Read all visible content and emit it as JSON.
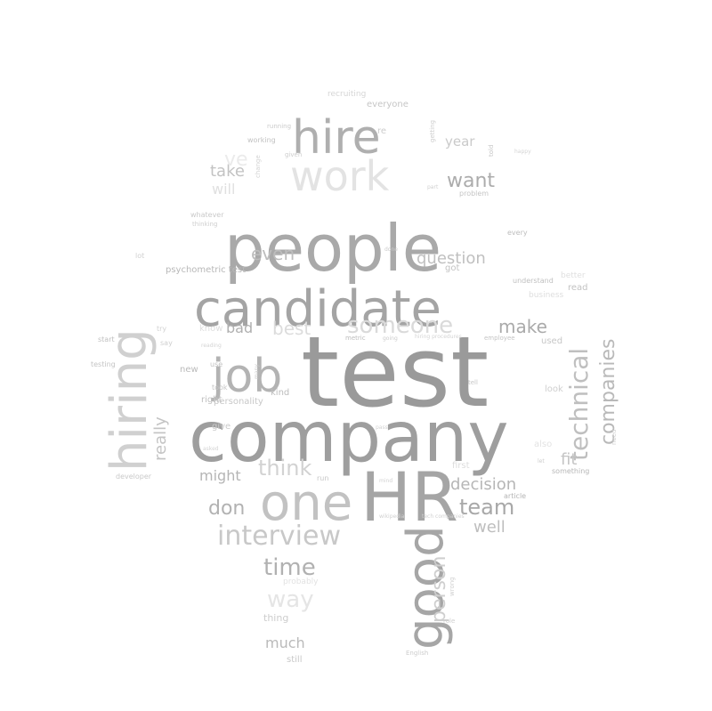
{
  "words": [
    {
      "text": "test",
      "color": "#9a9a9a"
    },
    {
      "text": "company",
      "color": "#9e9e9e"
    },
    {
      "text": "people",
      "color": "#a9a9a9"
    },
    {
      "text": "candidate",
      "color": "#a4a4a4"
    },
    {
      "text": "HR",
      "color": "#a5a5a5"
    },
    {
      "text": "hiring",
      "color": "#d0d0d0"
    },
    {
      "text": "one",
      "color": "#c2c2c2"
    },
    {
      "text": "job",
      "color": "#b3b3b3"
    },
    {
      "text": "work",
      "color": "#e3e3e3"
    },
    {
      "text": "hire",
      "color": "#afafaf"
    },
    {
      "text": "good",
      "color": "#a6a6a6"
    },
    {
      "text": "interview",
      "color": "#c8c8c8"
    },
    {
      "text": "technical",
      "color": "#bfbfbf"
    },
    {
      "text": "someone",
      "color": "#dadada"
    },
    {
      "text": "companies",
      "color": "#b9b9b9"
    },
    {
      "text": "person",
      "color": "#cfcfcf"
    },
    {
      "text": "think",
      "color": "#d2d2d2"
    },
    {
      "text": "team",
      "color": "#a8a8a8"
    },
    {
      "text": "time",
      "color": "#b1b1b1"
    },
    {
      "text": "way",
      "color": "#e5e5e5"
    },
    {
      "text": "want",
      "color": "#acacac"
    },
    {
      "text": "make",
      "color": "#aaaaaa"
    },
    {
      "text": "decision",
      "color": "#b6b6b6"
    },
    {
      "text": "even",
      "color": "#bdbdbd"
    },
    {
      "text": "question",
      "color": "#c0c0c0"
    },
    {
      "text": "best",
      "color": "#dcdcdc"
    },
    {
      "text": "don",
      "color": "#b2b2b2"
    },
    {
      "text": "really",
      "color": "#c4c4c4"
    },
    {
      "text": "fit",
      "color": "#c5c5c5"
    },
    {
      "text": "well",
      "color": "#bebebe"
    },
    {
      "text": "might",
      "color": "#b5b5b5"
    },
    {
      "text": "much",
      "color": "#bababa"
    },
    {
      "text": "take",
      "color": "#c3c3c3"
    },
    {
      "text": "bad",
      "color": "#b0b0b0"
    },
    {
      "text": "year",
      "color": "#cacaca"
    },
    {
      "text": "will",
      "color": "#e0e0e0"
    },
    {
      "text": "ve",
      "color": "#ebebeb"
    },
    {
      "text": "everyone",
      "color": "#c6c6c6"
    },
    {
      "text": "re",
      "color": "#cccccc"
    },
    {
      "text": "got",
      "color": "#c2c2c2"
    },
    {
      "text": "read",
      "color": "#c3c3c3"
    },
    {
      "text": "thing",
      "color": "#cdcdcd"
    },
    {
      "text": "still",
      "color": "#c9c9c9"
    },
    {
      "text": "kind",
      "color": "#bcbcbc"
    },
    {
      "text": "new",
      "color": "#bbbbbb"
    },
    {
      "text": "right",
      "color": "#c0c0c0"
    },
    {
      "text": "give",
      "color": "#cbcbcb"
    },
    {
      "text": "personality",
      "color": "#c8c8c8"
    },
    {
      "text": "psychometric test",
      "color": "#b8b8b8"
    },
    {
      "text": "used",
      "color": "#c7c7c7"
    },
    {
      "text": "look",
      "color": "#cfcfcf"
    },
    {
      "text": "first",
      "color": "#dddddd"
    },
    {
      "text": "article",
      "color": "#b5b5b5"
    },
    {
      "text": "something",
      "color": "#b7b7b7"
    },
    {
      "text": "probably",
      "color": "#e2e2e2"
    },
    {
      "text": "developer",
      "color": "#c9c9c9"
    },
    {
      "text": "testing",
      "color": "#c4c4c4"
    },
    {
      "text": "start",
      "color": "#c1c1c1"
    },
    {
      "text": "say",
      "color": "#cfcfcf"
    },
    {
      "text": "try",
      "color": "#d3d3d3"
    },
    {
      "text": "lot",
      "color": "#d1d1d1"
    },
    {
      "text": "every",
      "color": "#bdbdbd"
    },
    {
      "text": "problem",
      "color": "#c5c5c5"
    },
    {
      "text": "understand",
      "color": "#c0c0c0"
    },
    {
      "text": "better",
      "color": "#e0e0e0"
    },
    {
      "text": "business",
      "color": "#dedede"
    },
    {
      "text": "employee",
      "color": "#c4c4c4"
    },
    {
      "text": "metric",
      "color": "#bcbcbc"
    },
    {
      "text": "hiring procedures",
      "color": "#d4d4d4"
    },
    {
      "text": "told",
      "color": "#c6c6c6"
    },
    {
      "text": "tell",
      "color": "#c7c7c7"
    },
    {
      "text": "working",
      "color": "#c2c2c2"
    },
    {
      "text": "given",
      "color": "#cdcdcd"
    },
    {
      "text": "recruiting",
      "color": "#d5d5d5"
    },
    {
      "text": "running",
      "color": "#cbcbcb"
    },
    {
      "text": "whatever",
      "color": "#c9c9c9"
    },
    {
      "text": "thinking",
      "color": "#cfcfcf"
    },
    {
      "text": "change",
      "color": "#d3d3d3"
    },
    {
      "text": "use",
      "color": "#c1c1c1"
    },
    {
      "text": "took",
      "color": "#c6c6c6"
    },
    {
      "text": "know",
      "color": "#dedede"
    },
    {
      "text": "also",
      "color": "#e3e3e3"
    },
    {
      "text": "need",
      "color": "#d0d0d0"
    },
    {
      "text": "English",
      "color": "#cdcdcd"
    },
    {
      "text": "role",
      "color": "#cfcfcf"
    },
    {
      "text": "wrong",
      "color": "#d1d1d1"
    },
    {
      "text": "run",
      "color": "#c7c7c7"
    },
    {
      "text": "part",
      "color": "#d0d0d0"
    },
    {
      "text": "done",
      "color": "#cbcbcb"
    },
    {
      "text": "mind",
      "color": "#d2d2d2"
    },
    {
      "text": "going",
      "color": "#cbcbcb"
    },
    {
      "text": "pass",
      "color": "#d2d2d2"
    },
    {
      "text": "tech companies",
      "color": "#d0d0d0"
    },
    {
      "text": "wikipedia",
      "color": "#d1d1d1"
    },
    {
      "text": "getting",
      "color": "#cdcdcd"
    },
    {
      "text": "asked",
      "color": "#d4d4d4"
    },
    {
      "text": "happy",
      "color": "#d4d4d4"
    },
    {
      "text": "reading",
      "color": "#d3d3d3"
    },
    {
      "text": "many",
      "color": "#cbcbcb"
    },
    {
      "text": "let",
      "color": "#cdcdcd"
    }
  ]
}
